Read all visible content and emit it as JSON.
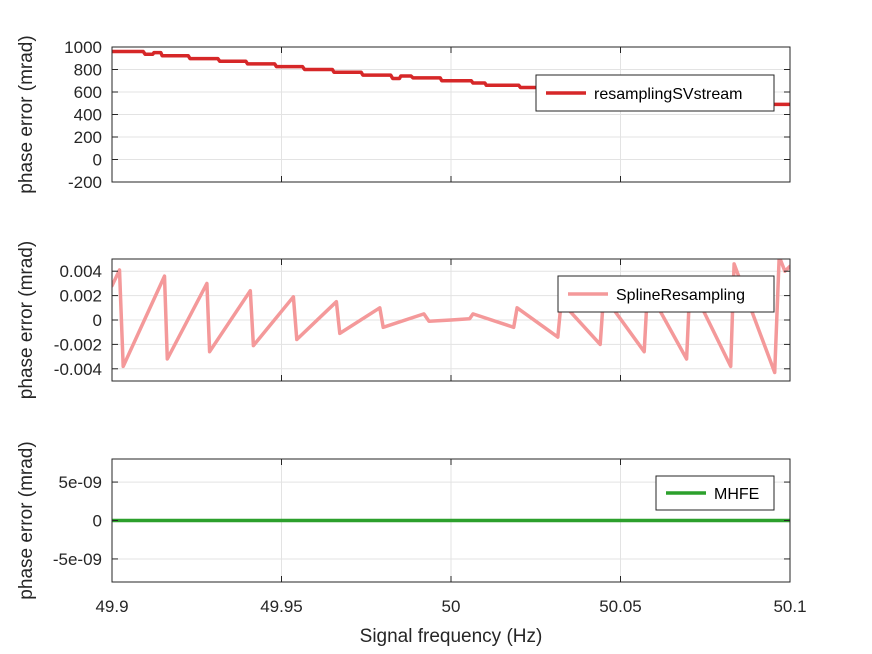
{
  "chart_data": [
    {
      "type": "line",
      "ylabel": "phase error (mrad)",
      "xlim": [
        49.9,
        50.1
      ],
      "ylim": [
        -200,
        1000
      ],
      "yticks": [
        {
          "value": -200,
          "label": "-200"
        },
        {
          "value": 0,
          "label": "0"
        },
        {
          "value": 200,
          "label": "200"
        },
        {
          "value": 400,
          "label": "400"
        },
        {
          "value": 600,
          "label": "600"
        },
        {
          "value": 800,
          "label": "800"
        },
        {
          "value": 1000,
          "label": "1000"
        }
      ],
      "grid": true,
      "legend_position": "top-right",
      "series": [
        {
          "name": "resamplingSVstream",
          "color": "#d62728",
          "x": [
            49.9,
            49.9092,
            49.9098,
            49.912,
            49.9124,
            49.9144,
            49.9148,
            49.9225,
            49.923,
            49.9312,
            49.9318,
            49.9395,
            49.94,
            49.948,
            49.9485,
            49.9562,
            49.9568,
            49.965,
            49.9655,
            49.9735,
            49.974,
            49.9822,
            49.9828,
            49.9848,
            49.9852,
            49.9882,
            49.9888,
            49.9968,
            49.9973,
            50.006,
            50.0065,
            50.01,
            50.0104,
            50.02,
            50.0205,
            50.03,
            50.0305,
            50.04,
            50.0405,
            50.05,
            50.0505,
            50.06,
            50.0605,
            50.07,
            50.0705,
            50.08,
            50.0805,
            50.09,
            50.0905,
            50.1
          ],
          "y": [
            960,
            960,
            935,
            935,
            950,
            950,
            922,
            922,
            897,
            897,
            873,
            873,
            850,
            850,
            826,
            826,
            800,
            800,
            775,
            775,
            750,
            750,
            720,
            720,
            742,
            742,
            725,
            725,
            700,
            700,
            680,
            680,
            660,
            660,
            640,
            640,
            620,
            620,
            600,
            600,
            580,
            580,
            560,
            560,
            540,
            540,
            520,
            520,
            490,
            490
          ]
        }
      ]
    },
    {
      "type": "line",
      "ylabel": "phase error (mrad)",
      "xlim": [
        49.9,
        50.1
      ],
      "ylim": [
        -0.005,
        0.005
      ],
      "yticks": [
        {
          "value": -0.004,
          "label": "-0.004"
        },
        {
          "value": -0.002,
          "label": "-0.002"
        },
        {
          "value": 0,
          "label": "0"
        },
        {
          "value": 0.002,
          "label": "0.002"
        },
        {
          "value": 0.004,
          "label": "0.004"
        }
      ],
      "grid": true,
      "legend_position": "top-right",
      "series": [
        {
          "name": "SplineResampling",
          "color": "#f4999a",
          "x": [
            49.9,
            49.9022,
            49.9033,
            49.9155,
            49.9163,
            49.928,
            49.9288,
            49.9408,
            49.9417,
            49.9535,
            49.9545,
            49.9662,
            49.9672,
            49.979,
            49.98,
            49.992,
            49.9935,
            50.0,
            50.0055,
            50.0065,
            50.0185,
            50.0195,
            50.0315,
            50.0325,
            50.044,
            50.045,
            50.057,
            50.058,
            50.0695,
            50.0705,
            50.0825,
            50.0835,
            50.0955,
            50.0968,
            50.0985,
            50.1
          ],
          "y": [
            0.0028,
            0.0041,
            -0.0038,
            0.0036,
            -0.0032,
            0.003,
            -0.0026,
            0.0024,
            -0.0021,
            0.0019,
            -0.0016,
            0.0015,
            -0.0011,
            0.001,
            -0.0006,
            0.0005,
            -0.0001,
            0.0,
            0.0001,
            0.0005,
            -0.0006,
            0.001,
            -0.0014,
            0.0015,
            -0.002,
            0.002,
            -0.0026,
            0.0026,
            -0.0032,
            0.003,
            -0.0038,
            0.0046,
            -0.0043,
            0.0052,
            0.004,
            0.0044
          ]
        }
      ]
    },
    {
      "type": "line",
      "xlabel": "Signal frequency (Hz)",
      "ylabel": "phase error (mrad)",
      "xlim": [
        49.9,
        50.1
      ],
      "ylim": [
        -8e-09,
        8e-09
      ],
      "xticks": [
        {
          "value": 49.9,
          "label": "49.9"
        },
        {
          "value": 49.95,
          "label": "49.95"
        },
        {
          "value": 50,
          "label": "50"
        },
        {
          "value": 50.05,
          "label": "50.05"
        },
        {
          "value": 50.1,
          "label": "50.1"
        }
      ],
      "yticks": [
        {
          "value": -5e-09,
          "label": "-5e-09"
        },
        {
          "value": 0,
          "label": "0"
        },
        {
          "value": 5e-09,
          "label": "5e-09"
        }
      ],
      "grid": true,
      "legend_position": "top-right",
      "series": [
        {
          "name": "MHFE",
          "color": "#2ca02c",
          "x": [
            49.9,
            50.1
          ],
          "y": [
            0,
            0
          ]
        }
      ]
    }
  ]
}
